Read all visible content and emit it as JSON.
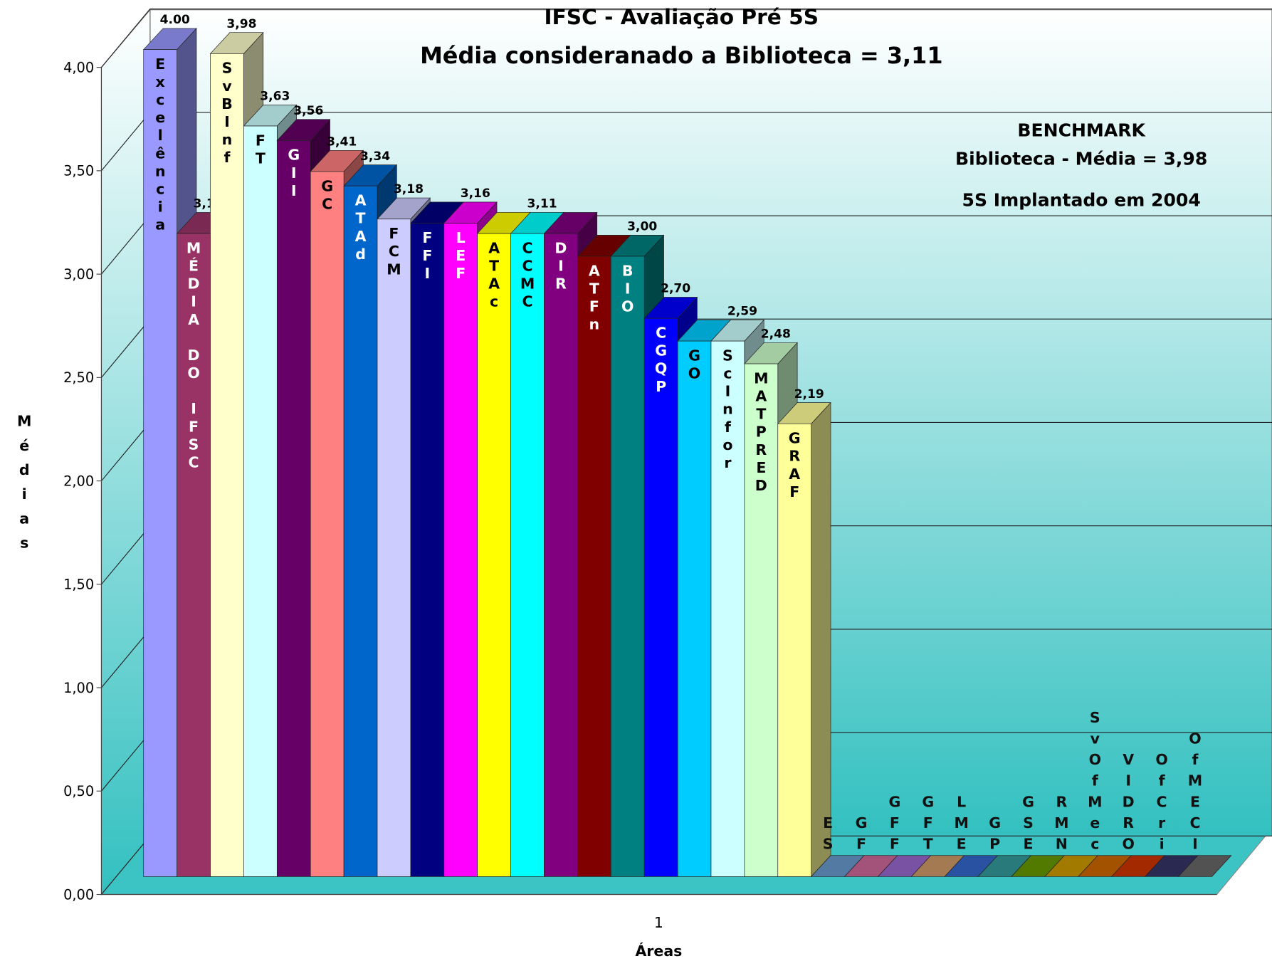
{
  "chart_data": {
    "type": "bar3d",
    "title": "IFSC - Avaliação Pré 5S",
    "subtitle": "Média consideranado a Biblioteca = 3,11",
    "y_label": "Médias",
    "x_label": "Áreas",
    "annotations": [
      "BENCHMARK",
      "Biblioteca -  Média = 3,98",
      "5S Implantado em 2004"
    ],
    "categories": [
      "1"
    ],
    "ylim": [
      0,
      4
    ],
    "yticks": [
      {
        "value": 0,
        "label": "0,00"
      },
      {
        "value": 0.5,
        "label": "0,50"
      },
      {
        "value": 1,
        "label": "1,00"
      },
      {
        "value": 1.5,
        "label": "1,50"
      },
      {
        "value": 2,
        "label": "2,00"
      },
      {
        "value": 2.5,
        "label": "2,50"
      },
      {
        "value": 3,
        "label": "3,00"
      },
      {
        "value": 3.5,
        "label": "3,50"
      },
      {
        "value": 4,
        "label": "4,00"
      }
    ],
    "grid": true,
    "series": [
      {
        "name": "Excelência",
        "color": "#9999ff",
        "values": [
          4.0
        ],
        "value_labels": [
          "4.00"
        ]
      },
      {
        "name": "MÉDIA DO IFSC",
        "color": "#993366",
        "values": [
          3.11
        ],
        "value_labels": [
          "3,11"
        ]
      },
      {
        "name": "SvBInf",
        "color": "#ffffcc",
        "values": [
          3.98
        ],
        "value_labels": [
          "3,98"
        ]
      },
      {
        "name": "FT",
        "color": "#ccffff",
        "values": [
          3.63
        ],
        "value_labels": [
          "3,63"
        ]
      },
      {
        "name": "GII",
        "color": "#660066",
        "values": [
          3.56
        ],
        "value_labels": [
          "3,56"
        ]
      },
      {
        "name": "GC",
        "color": "#ff8080",
        "values": [
          3.41
        ],
        "value_labels": [
          "3,41"
        ]
      },
      {
        "name": "ATAd",
        "color": "#0066cc",
        "values": [
          3.34
        ],
        "value_labels": [
          "3,34"
        ]
      },
      {
        "name": "FCM",
        "color": "#ccccff",
        "values": [
          3.18
        ],
        "value_labels": [
          "3,18"
        ]
      },
      {
        "name": "FFI",
        "color": "#000080",
        "values": [
          3.16
        ]
      },
      {
        "name": "LEF",
        "color": "#ff00ff",
        "values": [
          3.16
        ],
        "value_labels": [
          "3,16"
        ]
      },
      {
        "name": "ATAc",
        "color": "#ffff00",
        "values": [
          3.11
        ]
      },
      {
        "name": "CCMC",
        "color": "#00ffff",
        "values": [
          3.11
        ],
        "value_labels": [
          "3,11"
        ]
      },
      {
        "name": "DIR",
        "color": "#800080",
        "values": [
          3.11
        ]
      },
      {
        "name": "ATFn",
        "color": "#800000",
        "values": [
          3.0
        ]
      },
      {
        "name": "BIO",
        "color": "#008080",
        "values": [
          3.0
        ],
        "value_labels": [
          "3,00"
        ]
      },
      {
        "name": "CGQP",
        "color": "#0000ff",
        "values": [
          2.7
        ],
        "value_labels": [
          "2,70"
        ]
      },
      {
        "name": "GO",
        "color": "#00ccff",
        "values": [
          2.59
        ]
      },
      {
        "name": "ScInfor",
        "color": "#ccffff",
        "values": [
          2.59
        ],
        "value_labels": [
          "2,59"
        ]
      },
      {
        "name": "MATPRED",
        "color": "#ccffcc",
        "values": [
          2.48
        ],
        "value_labels": [
          "2,48"
        ]
      },
      {
        "name": "GRAF",
        "color": "#ffff99",
        "values": [
          2.19
        ],
        "value_labels": [
          "2,19"
        ]
      },
      {
        "name": "ES",
        "color": "#6699cc",
        "values": [
          0
        ]
      },
      {
        "name": "GF",
        "color": "#cc6699",
        "values": [
          0
        ]
      },
      {
        "name": "GFF",
        "color": "#9966cc",
        "values": [
          0
        ]
      },
      {
        "name": "GFT",
        "color": "#cc9966",
        "values": [
          0
        ]
      },
      {
        "name": "LME",
        "color": "#3366cc",
        "values": [
          0
        ]
      },
      {
        "name": "GP",
        "color": "#339999",
        "values": [
          0
        ]
      },
      {
        "name": "GSE",
        "color": "#669900",
        "values": [
          0
        ]
      },
      {
        "name": "RMN",
        "color": "#cc9900",
        "values": [
          0
        ]
      },
      {
        "name": "SvOfMec",
        "color": "#cc6600",
        "values": [
          0
        ]
      },
      {
        "name": "VIDRO",
        "color": "#cc3300",
        "values": [
          0
        ]
      },
      {
        "name": "OfCri",
        "color": "#333366",
        "values": [
          0
        ]
      },
      {
        "name": "OfMECI",
        "color": "#666666",
        "values": [
          0
        ]
      }
    ]
  }
}
